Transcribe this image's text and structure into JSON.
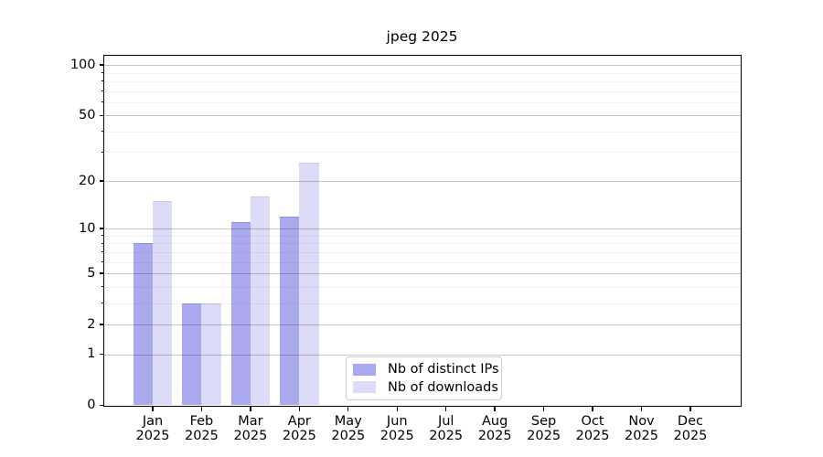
{
  "chart_data": {
    "type": "bar",
    "title": "jpeg 2025",
    "categories": [
      "Jan",
      "Feb",
      "Mar",
      "Apr",
      "May",
      "Jun",
      "Jul",
      "Aug",
      "Sep",
      "Oct",
      "Nov",
      "Dec"
    ],
    "category_year": "2025",
    "series": [
      {
        "name": "Nb of distinct IPs",
        "color": "#a9a9f0",
        "edge_color": "#9292e4",
        "values": [
          8,
          3,
          11,
          12,
          0,
          0,
          0,
          0,
          0,
          0,
          0,
          0
        ]
      },
      {
        "name": "Nb of downloads",
        "color": "#dcdcf8",
        "edge_color": "#c9c9ef",
        "values": [
          15,
          3,
          16,
          26,
          0,
          0,
          0,
          0,
          0,
          0,
          0,
          0
        ]
      }
    ],
    "y_axis": {
      "scale": "log1p",
      "major_ticks": [
        0,
        1,
        2,
        5,
        10,
        20,
        50,
        100
      ],
      "minor_ticks": [
        3,
        4,
        6,
        7,
        8,
        9,
        30,
        40,
        60,
        70,
        80,
        90
      ],
      "ylim": [
        0,
        114
      ]
    },
    "x_axis": {
      "tick_count": 12
    },
    "legend": {
      "entries": [
        "Nb of distinct IPs",
        "Nb of downloads"
      ],
      "position": "lower center"
    },
    "grid": "on"
  }
}
